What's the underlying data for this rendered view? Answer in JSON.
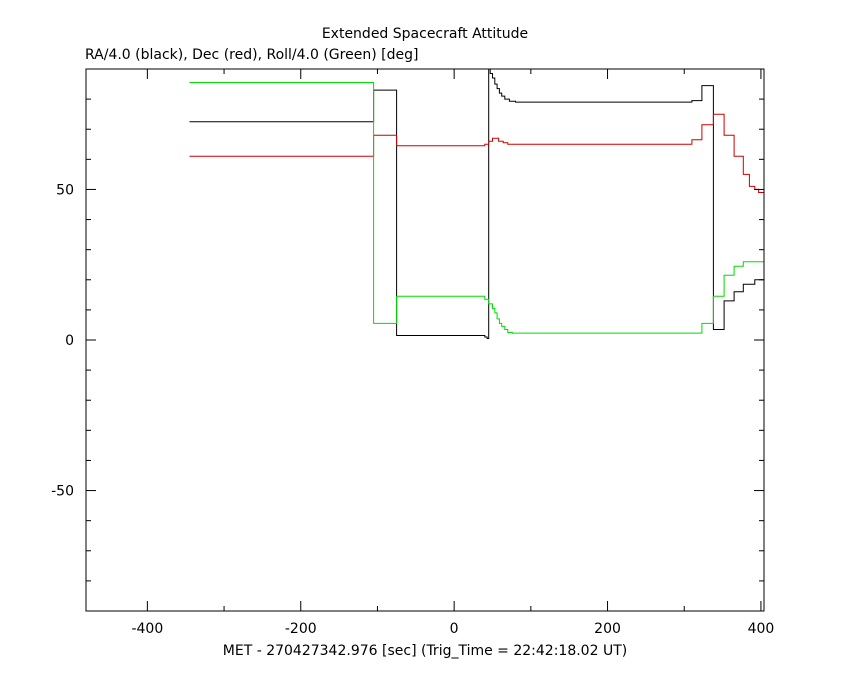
{
  "chart_data": {
    "type": "line",
    "title": "Extended Spacecraft Attitude",
    "subtitle": "RA/4.0 (black), Dec (red), Roll/4.0 (Green) [deg]",
    "xlabel": "MET - 270427342.976 [sec] (Trig_Time = 22:42:18.02 UT)",
    "ylabel": "",
    "xlim": [
      -480,
      404
    ],
    "ylim": [
      -90,
      90
    ],
    "x_ticks": [
      -400,
      -200,
      0,
      200,
      400
    ],
    "y_ticks": [
      -50,
      0,
      50
    ],
    "grid": false,
    "series": [
      {
        "color": "#000000",
        "step": true,
        "points": [
          [
            -345,
            72.5
          ],
          [
            -105,
            72.5
          ],
          [
            -105,
            83
          ],
          [
            -75,
            83
          ],
          [
            -75,
            1.5
          ],
          [
            40,
            1.5
          ],
          [
            40,
            1.0
          ],
          [
            43,
            1.0
          ],
          [
            43,
            0.5
          ],
          [
            45,
            0.5
          ],
          [
            45,
            90
          ],
          [
            47,
            90
          ],
          [
            47,
            88.5
          ],
          [
            50,
            88.5
          ],
          [
            50,
            87
          ],
          [
            53,
            87
          ],
          [
            53,
            85
          ],
          [
            56,
            85
          ],
          [
            56,
            83.5
          ],
          [
            59,
            83.5
          ],
          [
            59,
            82
          ],
          [
            62,
            82
          ],
          [
            62,
            81
          ],
          [
            66,
            81
          ],
          [
            66,
            80
          ],
          [
            72,
            80
          ],
          [
            72,
            79.3
          ],
          [
            80,
            79.3
          ],
          [
            80,
            79
          ],
          [
            310,
            79
          ],
          [
            310,
            79.5
          ],
          [
            323,
            79.5
          ],
          [
            323,
            84.5
          ],
          [
            338,
            84.5
          ],
          [
            338,
            3.5
          ],
          [
            352,
            3.5
          ],
          [
            352,
            13
          ],
          [
            365,
            13
          ],
          [
            365,
            16
          ],
          [
            377,
            16
          ],
          [
            377,
            18.5
          ],
          [
            392,
            18.5
          ],
          [
            392,
            20
          ],
          [
            404,
            20
          ]
        ]
      },
      {
        "color": "#cc0000",
        "step": true,
        "points": [
          [
            -345,
            61
          ],
          [
            -105,
            61
          ],
          [
            -105,
            68
          ],
          [
            -75,
            68
          ],
          [
            -75,
            64.5
          ],
          [
            40,
            64.5
          ],
          [
            40,
            65
          ],
          [
            45,
            65
          ],
          [
            45,
            66
          ],
          [
            50,
            66
          ],
          [
            50,
            67
          ],
          [
            58,
            67
          ],
          [
            58,
            66
          ],
          [
            64,
            66
          ],
          [
            64,
            65.5
          ],
          [
            70,
            65.5
          ],
          [
            70,
            65
          ],
          [
            310,
            65
          ],
          [
            310,
            66.5
          ],
          [
            323,
            66.5
          ],
          [
            323,
            71.5
          ],
          [
            338,
            71.5
          ],
          [
            338,
            75
          ],
          [
            352,
            75
          ],
          [
            352,
            68
          ],
          [
            365,
            68
          ],
          [
            365,
            61
          ],
          [
            377,
            61
          ],
          [
            377,
            55
          ],
          [
            385,
            55
          ],
          [
            385,
            51
          ],
          [
            392,
            51
          ],
          [
            392,
            50
          ],
          [
            397,
            50
          ],
          [
            397,
            49
          ],
          [
            404,
            49
          ]
        ]
      },
      {
        "color": "#00dd00",
        "step": true,
        "points": [
          [
            -345,
            85.5
          ],
          [
            -105,
            85.5
          ],
          [
            -105,
            5.5
          ],
          [
            -75,
            5.5
          ],
          [
            -75,
            14.5
          ],
          [
            40,
            14.5
          ],
          [
            40,
            13.5
          ],
          [
            45,
            13.5
          ],
          [
            45,
            12
          ],
          [
            50,
            12
          ],
          [
            50,
            10.5
          ],
          [
            53,
            10.5
          ],
          [
            53,
            9
          ],
          [
            56,
            9
          ],
          [
            56,
            7
          ],
          [
            59,
            7
          ],
          [
            59,
            5.5
          ],
          [
            62,
            5.5
          ],
          [
            62,
            4.5
          ],
          [
            66,
            4.5
          ],
          [
            66,
            3.5
          ],
          [
            70,
            3.5
          ],
          [
            70,
            2.5
          ],
          [
            76,
            2.5
          ],
          [
            76,
            2.3
          ],
          [
            323,
            2.3
          ],
          [
            323,
            5.5
          ],
          [
            338,
            5.5
          ],
          [
            338,
            14.5
          ],
          [
            352,
            14.5
          ],
          [
            352,
            21.5
          ],
          [
            365,
            21.5
          ],
          [
            365,
            24.5
          ],
          [
            377,
            24.5
          ],
          [
            377,
            26
          ],
          [
            404,
            26
          ]
        ]
      }
    ]
  }
}
